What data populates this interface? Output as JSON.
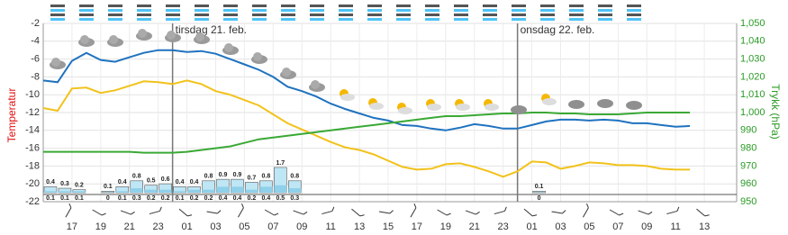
{
  "chart_data": {
    "type": "line",
    "y_label": "Temperatur",
    "y2_label": "Trykk (hPa)",
    "xlim": [
      0,
      48.25
    ],
    "xticks": [
      {
        "value": 2,
        "label": "17"
      },
      {
        "value": 4,
        "label": "19"
      },
      {
        "value": 6,
        "label": "21"
      },
      {
        "value": 8,
        "label": "23"
      },
      {
        "value": 10,
        "label": "01"
      },
      {
        "value": 12,
        "label": "03"
      },
      {
        "value": 14,
        "label": "05"
      },
      {
        "value": 16,
        "label": "07"
      },
      {
        "value": 18,
        "label": "09"
      },
      {
        "value": 20,
        "label": "11"
      },
      {
        "value": 22,
        "label": "13"
      },
      {
        "value": 24,
        "label": "15"
      },
      {
        "value": 26,
        "label": "17"
      },
      {
        "value": 28,
        "label": "19"
      },
      {
        "value": 30,
        "label": "21"
      },
      {
        "value": 32,
        "label": "23"
      },
      {
        "value": 34,
        "label": "01"
      },
      {
        "value": 36,
        "label": "03"
      },
      {
        "value": 38,
        "label": "05"
      },
      {
        "value": 40,
        "label": "07"
      },
      {
        "value": 42,
        "label": "09"
      },
      {
        "value": 44,
        "label": "11"
      },
      {
        "value": 46,
        "label": "13"
      }
    ],
    "ylim": [
      -22,
      -2
    ],
    "yticks": [
      -2,
      -4,
      -6,
      -8,
      -10,
      -12,
      -14,
      -16,
      -18,
      -20,
      -22
    ],
    "y2lim": [
      950,
      1050
    ],
    "y2ticks": [
      {
        "value": 1050,
        "label": "1,050"
      },
      {
        "value": 1040,
        "label": "1,040"
      },
      {
        "value": 1030,
        "label": "1,030"
      },
      {
        "value": 1020,
        "label": "1,020"
      },
      {
        "value": 1010,
        "label": "1,010"
      },
      {
        "value": 1000,
        "label": "1,000"
      },
      990,
      980,
      970,
      960,
      950
    ],
    "grid": true,
    "day_markers": [
      {
        "x": 9,
        "label": "tirsdag 21. feb."
      },
      {
        "x": 33,
        "label": "onsdag 22. feb."
      }
    ],
    "x": [
      0,
      1,
      2,
      3,
      4,
      5,
      6,
      7,
      8,
      9,
      10,
      11,
      12,
      13,
      14,
      15,
      16,
      17,
      18,
      19,
      20,
      21,
      22,
      23,
      24,
      25,
      26,
      27,
      28,
      29,
      30,
      31,
      32,
      33,
      34,
      35,
      36,
      37,
      38,
      39,
      40,
      41,
      42,
      43,
      44,
      45
    ],
    "series": [
      {
        "color": "#1f72bf",
        "values": [
          -8.4,
          -8.6,
          -6.2,
          -5.3,
          -6.1,
          -6.3,
          -5.8,
          -5.3,
          -5.0,
          -5.0,
          -5.2,
          -5.1,
          -5.4,
          -6.0,
          -6.6,
          -7.2,
          -8.0,
          -9.1,
          -9.6,
          -10.2,
          -11.0,
          -11.6,
          -12.1,
          -12.6,
          -12.9,
          -13.4,
          -13.5,
          -13.8,
          -14.0,
          -13.7,
          -13.3,
          -13.5,
          -13.8,
          -13.8,
          -13.4,
          -13.0,
          -12.8,
          -12.8,
          -12.9,
          -12.8,
          -12.9,
          -13.2,
          -13.2,
          -13.4,
          -13.6,
          -13.5
        ]
      },
      {
        "color": "#f2c21b",
        "values": [
          -11.5,
          -11.8,
          -9.3,
          -9.2,
          -9.8,
          -9.5,
          -9.0,
          -8.5,
          -8.6,
          -8.8,
          -8.4,
          -8.8,
          -9.6,
          -10.0,
          -10.6,
          -11.2,
          -12.2,
          -13.2,
          -13.9,
          -14.6,
          -15.3,
          -15.9,
          -16.2,
          -16.7,
          -17.4,
          -18.1,
          -18.4,
          -18.3,
          -17.8,
          -17.7,
          -18.1,
          -18.6,
          -19.2,
          -18.6,
          -17.5,
          -17.6,
          -18.3,
          -18.0,
          -17.6,
          -17.7,
          -17.9,
          -17.9,
          -18.0,
          -18.3,
          -18.4,
          -18.4
        ]
      },
      {
        "color": "#3aa935",
        "axis": "y2",
        "values": [
          978,
          978,
          978,
          978,
          978,
          978,
          978,
          977.5,
          977.5,
          977.5,
          978,
          979,
          980,
          981,
          983,
          985,
          986,
          987,
          988,
          989,
          990,
          991,
          992,
          993,
          994,
          995,
          996,
          997,
          998,
          998,
          998.5,
          999,
          999.5,
          999.5,
          1000,
          1000,
          999.5,
          999.5,
          999,
          999,
          999,
          999.5,
          1000,
          1000,
          1000,
          1000
        ]
      }
    ],
    "precipitation": {
      "color": "#bfe6f5",
      "min_color": "#8fd0ea",
      "x": [
        0,
        1,
        2,
        4,
        5,
        6,
        7,
        8,
        9,
        10,
        11,
        12,
        13,
        14,
        15,
        16,
        17,
        34
      ],
      "max": [
        0.4,
        0.3,
        0.2,
        0.1,
        0.4,
        0.8,
        0.5,
        0.6,
        0.4,
        0.4,
        0.8,
        0.9,
        0.9,
        0.7,
        0.8,
        1.7,
        0.8,
        0.1
      ],
      "min": [
        0.1,
        0.1,
        0.1,
        0,
        0.1,
        0.3,
        0.2,
        0.2,
        0.1,
        0.2,
        0.2,
        0.4,
        0.4,
        0.2,
        0.4,
        0.5,
        0.3,
        0
      ]
    }
  }
}
